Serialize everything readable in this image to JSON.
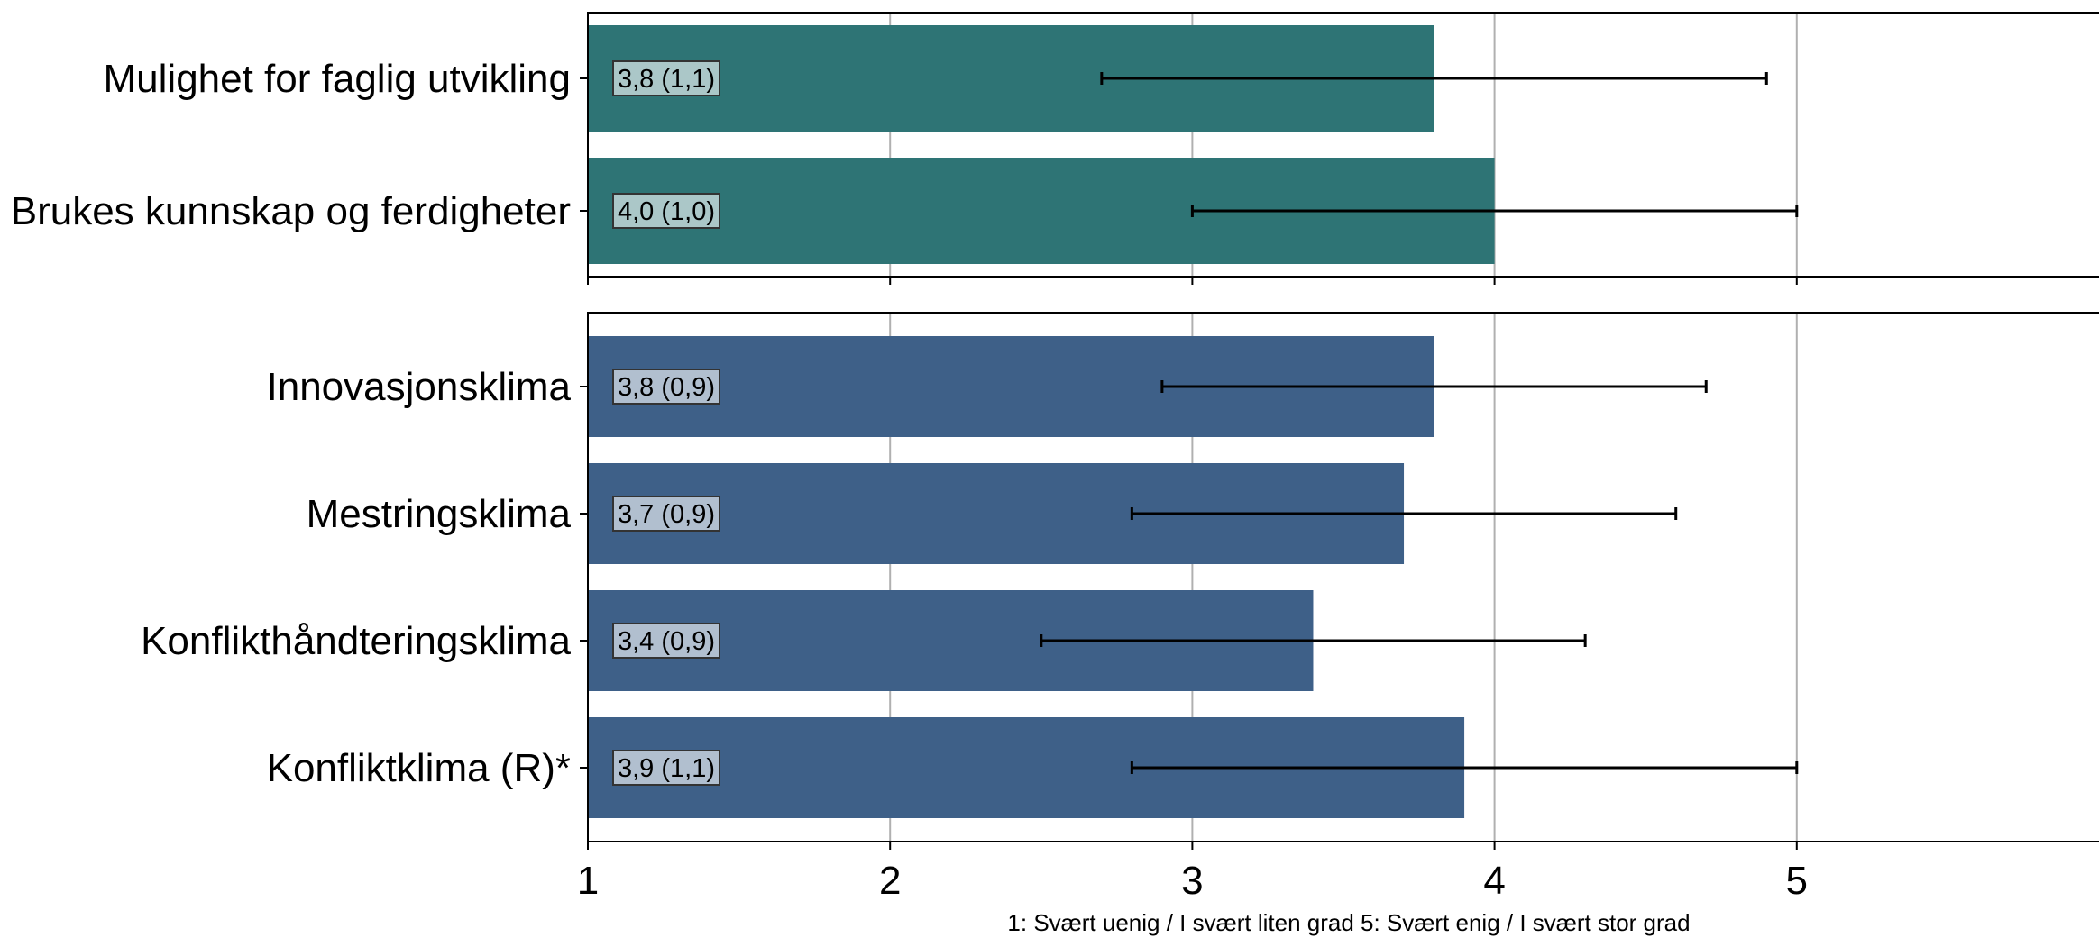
{
  "chart_data": [
    {
      "type": "bar",
      "orientation": "horizontal",
      "xlim": [
        1,
        6
      ],
      "xticks": [
        1,
        2,
        3,
        4,
        5
      ],
      "grid": "vertical",
      "color": "#2e7475",
      "categories": [
        "Mulighet for faglig utvikling",
        "Brukes kunnskap og ferdigheter"
      ],
      "values": [
        3.8,
        4.0
      ],
      "error": [
        1.1,
        1.0
      ],
      "value_labels": [
        "3,8 (1,1)",
        "4,0 (1,0)"
      ]
    },
    {
      "type": "bar",
      "orientation": "horizontal",
      "xlim": [
        1,
        6
      ],
      "xticks": [
        1,
        2,
        3,
        4,
        5
      ],
      "xtick_labels": [
        "1",
        "2",
        "3",
        "4",
        "5"
      ],
      "grid": "vertical",
      "color": "#3e6088",
      "categories": [
        "Innovasjonsklima",
        "Mestringsklima",
        "Konflikthåndteringsklima",
        "Konfliktklima (R)*"
      ],
      "values": [
        3.8,
        3.7,
        3.4,
        3.9
      ],
      "error": [
        0.9,
        0.9,
        0.9,
        1.1
      ],
      "value_labels": [
        "3,8 (0,9)",
        "3,7 (0,9)",
        "3,4 (0,9)",
        "3,9 (1,1)"
      ],
      "xlabel": "1: Svært uenig / I svært liten grad  5: Svært enig / I svært stor grad"
    }
  ]
}
